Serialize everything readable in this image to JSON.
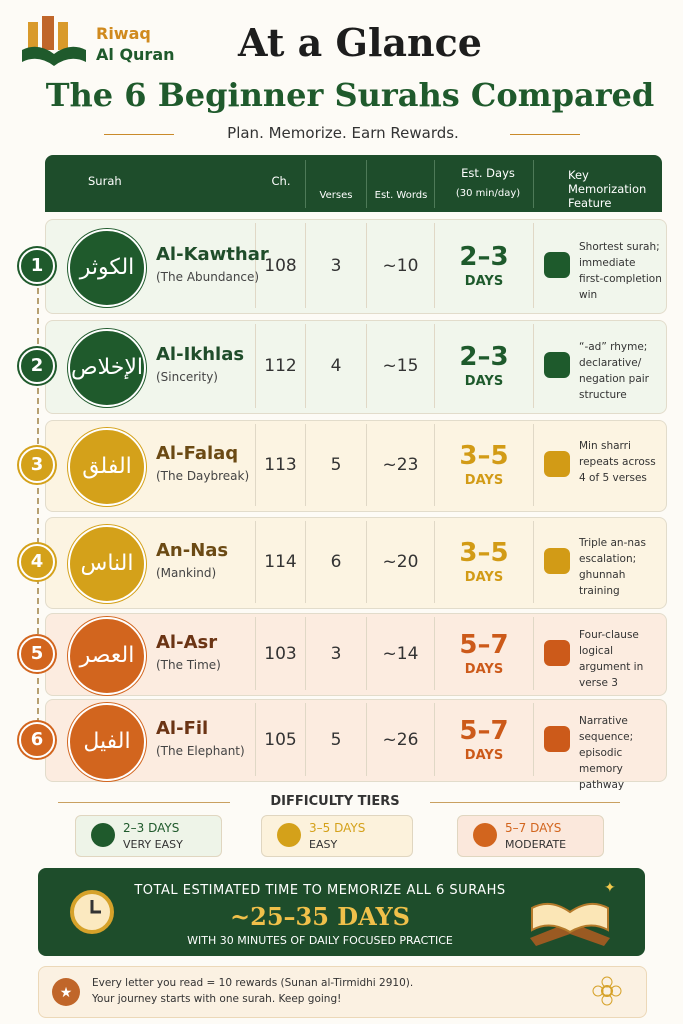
{
  "brand": {
    "line1": "Riwaq",
    "line2": "Al Quran"
  },
  "header": {
    "title": "At a Glance",
    "subtitle": "The 6 Beginner Surahs Compared",
    "tagline": "Plan. Memorize. Earn Rewards."
  },
  "table": {
    "columns": [
      "Surah",
      "Ch.",
      "Verses",
      "Est. Words",
      "Est. Days",
      "Key Memorization Feature"
    ],
    "days_note": "(30 min/day)",
    "rows": [
      {
        "number": 1,
        "arabic": "الكوثر",
        "name": "Al-Kawthar",
        "meaning": "(The Abundance)",
        "chapter": 108,
        "verses": 3,
        "words": "~10",
        "days": "2–3",
        "days_label": "DAYS",
        "feature": "Shortest surah; immediate first-completion win",
        "color": "#1f5a2c",
        "bg": "#f1f6ec",
        "accent": "#1e5a2c"
      },
      {
        "number": 2,
        "arabic": "الإخلاص",
        "name": "Al-Ikhlas",
        "meaning": "(Sincerity)",
        "chapter": 112,
        "verses": 4,
        "words": "~15",
        "days": "2–3",
        "days_label": "DAYS",
        "feature": "“-ad” rhyme; declarative/ negation pair structure",
        "color": "#1f5a2c",
        "bg": "#f1f6ec",
        "accent": "#1e5a2c"
      },
      {
        "number": 3,
        "arabic": "الفلق",
        "name": "Al-Falaq",
        "meaning": "(The Daybreak)",
        "chapter": 113,
        "verses": 5,
        "words": "~23",
        "days": "3–5",
        "days_label": "DAYS",
        "feature": "Min sharri repeats across 4 of 5 verses",
        "color": "#d4a11a",
        "bg": "#fcf4e2",
        "accent": "#d29b16"
      },
      {
        "number": 4,
        "arabic": "الناس",
        "name": "An-Nas",
        "meaning": "(Mankind)",
        "chapter": 114,
        "verses": 6,
        "words": "~20",
        "days": "3–5",
        "days_label": "DAYS",
        "feature": "Triple an-nas escalation; ghunnah training",
        "color": "#d4a11a",
        "bg": "#fcf4e2",
        "accent": "#d29b16"
      },
      {
        "number": 5,
        "arabic": "العصر",
        "name": "Al-Asr",
        "meaning": "(The Time)",
        "chapter": 103,
        "verses": 3,
        "words": "~14",
        "days": "5–7",
        "days_label": "DAYS",
        "feature": "Four-clause logical argument in verse 3",
        "color": "#d2651e",
        "bg": "#fcece0",
        "accent": "#cc5a1a"
      },
      {
        "number": 6,
        "arabic": "الفيل",
        "name": "Al-Fil",
        "meaning": "(The Elephant)",
        "chapter": 105,
        "verses": 5,
        "words": "~26",
        "days": "5–7",
        "days_label": "DAYS",
        "feature": "Narrative sequence; episodic memory pathway",
        "color": "#d2651e",
        "bg": "#fcece0",
        "accent": "#cc5a1a"
      }
    ]
  },
  "tiers": {
    "title": "DIFFICULTY TIERS",
    "items": [
      {
        "range": "2–3 DAYS",
        "label": "VERY EASY",
        "color": "#1f5a2c",
        "bg": "#eef4e8"
      },
      {
        "range": "3–5 DAYS",
        "label": "EASY",
        "color": "#d4a11a",
        "bg": "#fcf2dc"
      },
      {
        "range": "5–7 DAYS",
        "label": "MODERATE",
        "color": "#d2651e",
        "bg": "#fbe8dc"
      }
    ]
  },
  "total": {
    "heading": "TOTAL ESTIMATED TIME TO MEMORIZE ALL 6 SURAHS",
    "value": "~25–35 DAYS",
    "note": "WITH 30 MINUTES OF DAILY FOCUSED PRACTICE"
  },
  "footer": {
    "line1": "Every letter you read = 10 rewards (Sunan al-Tirmidhi 2910).",
    "line2": "Your journey starts with one surah. Keep going!"
  }
}
